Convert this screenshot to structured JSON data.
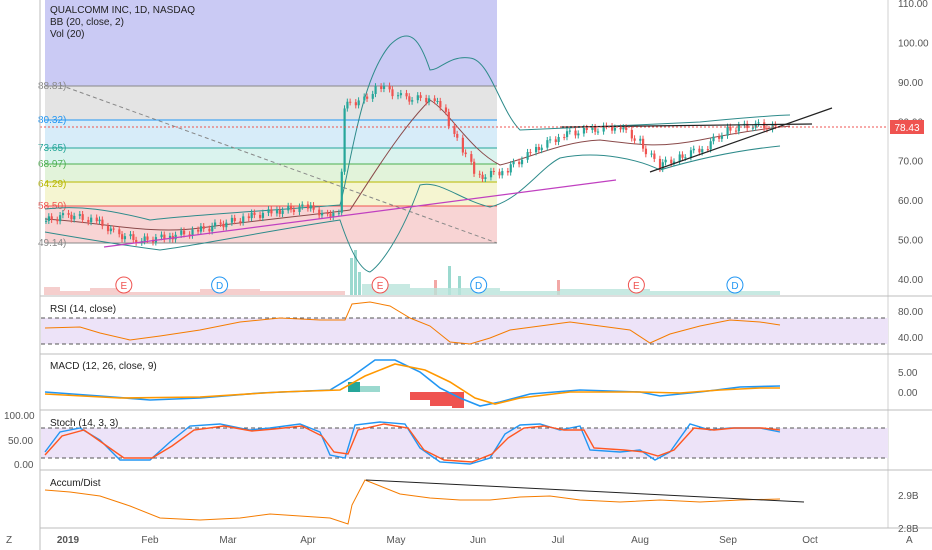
{
  "header": {
    "title": "QUALCOMM INC, 1D, NASDAQ",
    "indicator_bb": "BB (20, close, 2)",
    "indicator_vol": "Vol (20)"
  },
  "price_badge": {
    "text": "78.43",
    "color": "#ef5350"
  },
  "fib_labels": [
    {
      "text": "88.81)",
      "value": 88.81,
      "color": "#888888"
    },
    {
      "text": "80.32)",
      "value": 80.32,
      "color": "#2196f3"
    },
    {
      "text": "73.65)",
      "value": 73.65,
      "color": "#26a69a"
    },
    {
      "text": "68.97)",
      "value": 68.97,
      "color": "#4caf50"
    },
    {
      "text": "64.29)",
      "value": 64.29,
      "color": "#b8b800"
    },
    {
      "text": "58.50)",
      "value": 58.5,
      "color": "#ef5350"
    },
    {
      "text": "49.14)",
      "value": 49.14,
      "color": "#888888"
    }
  ],
  "panels": {
    "rsi": {
      "title": "RSI (14, close)"
    },
    "macd": {
      "title": "MACD (12, 26, close, 9)"
    },
    "stoch": {
      "title": "Stoch (14, 3, 3)"
    },
    "ad": {
      "title": "Accum/Dist"
    }
  },
  "x_axis": {
    "labels": [
      "2019",
      "Feb",
      "Mar",
      "Apr",
      "May",
      "Jun",
      "Jul",
      "Aug",
      "Sep",
      "Oct"
    ],
    "corner_left": "Z",
    "corner_right": "A"
  },
  "chart_data": {
    "type": "line",
    "title": "QUALCOMM INC, 1D, NASDAQ",
    "x_range": [
      "2019-01-02",
      "2019-09-20"
    ],
    "price": {
      "y_ticks": [
        40,
        50,
        60,
        70,
        80,
        90,
        100,
        110
      ],
      "ylim": [
        35,
        111
      ],
      "last": 78.43,
      "closes": [
        [
          "2019-01-02",
          55
        ],
        [
          "2019-01-10",
          56.5
        ],
        [
          "2019-01-20",
          55
        ],
        [
          "2019-01-28",
          51.5
        ],
        [
          "2019-02-05",
          50
        ],
        [
          "2019-02-15",
          51
        ],
        [
          "2019-02-25",
          52.5
        ],
        [
          "2019-03-05",
          54
        ],
        [
          "2019-03-15",
          56
        ],
        [
          "2019-03-25",
          57.5
        ],
        [
          "2019-04-05",
          58.5
        ],
        [
          "2019-04-12",
          56.5
        ],
        [
          "2019-04-16",
          57.5
        ],
        [
          "2019-04-17",
          67
        ],
        [
          "2019-04-18",
          84
        ],
        [
          "2019-04-25",
          86
        ],
        [
          "2019-05-01",
          89
        ],
        [
          "2019-05-10",
          86
        ],
        [
          "2019-05-20",
          86
        ],
        [
          "2019-05-24",
          82
        ],
        [
          "2019-05-30",
          73
        ],
        [
          "2019-06-05",
          66
        ],
        [
          "2019-06-15",
          68
        ],
        [
          "2019-06-25",
          73
        ],
        [
          "2019-07-05",
          77
        ],
        [
          "2019-07-15",
          78
        ],
        [
          "2019-07-25",
          79
        ],
        [
          "2019-08-01",
          75
        ],
        [
          "2019-08-08",
          69
        ],
        [
          "2019-08-15",
          71
        ],
        [
          "2019-08-25",
          74
        ],
        [
          "2019-09-01",
          78
        ],
        [
          "2019-09-10",
          79.5
        ],
        [
          "2019-09-20",
          78.43
        ]
      ]
    },
    "rsi": {
      "y_ticks": [
        40,
        80
      ],
      "bands": [
        30,
        70
      ]
    },
    "macd": {
      "y_ticks": [
        0,
        5
      ]
    },
    "stoch": {
      "y_ticks": [
        0,
        50,
        100
      ],
      "bands": [
        20,
        80
      ]
    },
    "accum_dist": {
      "y_ticks": [
        "2.9B",
        "2.8B"
      ]
    },
    "earnings_markers": [
      {
        "label": "E",
        "date": "2019-01-30"
      },
      {
        "label": "D",
        "date": "2019-03-05"
      },
      {
        "label": "E",
        "date": "2019-05-01"
      },
      {
        "label": "D",
        "date": "2019-06-05"
      },
      {
        "label": "E",
        "date": "2019-07-31"
      },
      {
        "label": "D",
        "date": "2019-09-04"
      }
    ],
    "colors": {
      "up": "#26a69a",
      "down": "#ef5350",
      "bb": "#2e8b8b",
      "rsi": "#f57c00",
      "macd": "#2196f3",
      "signal": "#ff9800"
    }
  }
}
